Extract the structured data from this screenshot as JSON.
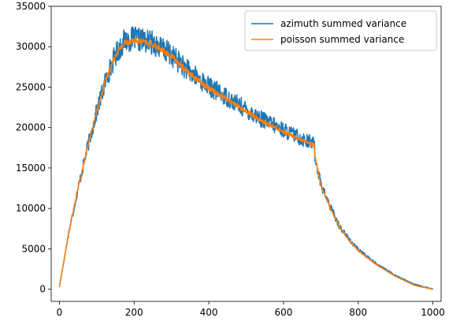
{
  "chart_data": {
    "type": "line",
    "title": "",
    "xlabel": "",
    "ylabel": "",
    "xlim": [
      -22,
      1022
    ],
    "ylim": [
      -1500,
      35000
    ],
    "xticks": [
      0,
      200,
      400,
      600,
      800,
      1000
    ],
    "yticks": [
      0,
      5000,
      10000,
      15000,
      20000,
      25000,
      30000,
      35000
    ],
    "grid": false,
    "legend_position": "top-right",
    "x_range": [
      0,
      1000
    ],
    "series": [
      {
        "name": "azimuth summed variance",
        "color": "#1f77b4",
        "noise_amplitude": 1500,
        "x": [
          0,
          25,
          50,
          75,
          100,
          125,
          150,
          175,
          200,
          250,
          300,
          350,
          400,
          450,
          500,
          550,
          600,
          650,
          683,
          684,
          690,
          700,
          725,
          750,
          775,
          800,
          850,
          900,
          950,
          1000
        ],
        "values": [
          300,
          7000,
          12500,
          17500,
          22000,
          26000,
          29000,
          30800,
          31000,
          30500,
          29000,
          26800,
          25100,
          23700,
          22200,
          20800,
          19700,
          18600,
          18000,
          16500,
          15200,
          13000,
          10200,
          7800,
          6200,
          4900,
          3100,
          1700,
          600,
          0
        ]
      },
      {
        "name": "poisson summed variance",
        "color": "#ff7f0e",
        "noise_amplitude": 400,
        "x": [
          0,
          25,
          50,
          75,
          100,
          125,
          150,
          175,
          200,
          250,
          300,
          350,
          400,
          450,
          500,
          550,
          600,
          650,
          683,
          684,
          690,
          700,
          725,
          750,
          775,
          800,
          850,
          900,
          950,
          1000
        ],
        "values": [
          300,
          7000,
          12500,
          17500,
          22000,
          26000,
          29000,
          30500,
          30800,
          30300,
          28800,
          26600,
          24900,
          23500,
          22000,
          20600,
          19500,
          18400,
          17800,
          16400,
          15100,
          12900,
          10100,
          7700,
          6100,
          4800,
          3000,
          1600,
          500,
          0
        ]
      }
    ]
  }
}
